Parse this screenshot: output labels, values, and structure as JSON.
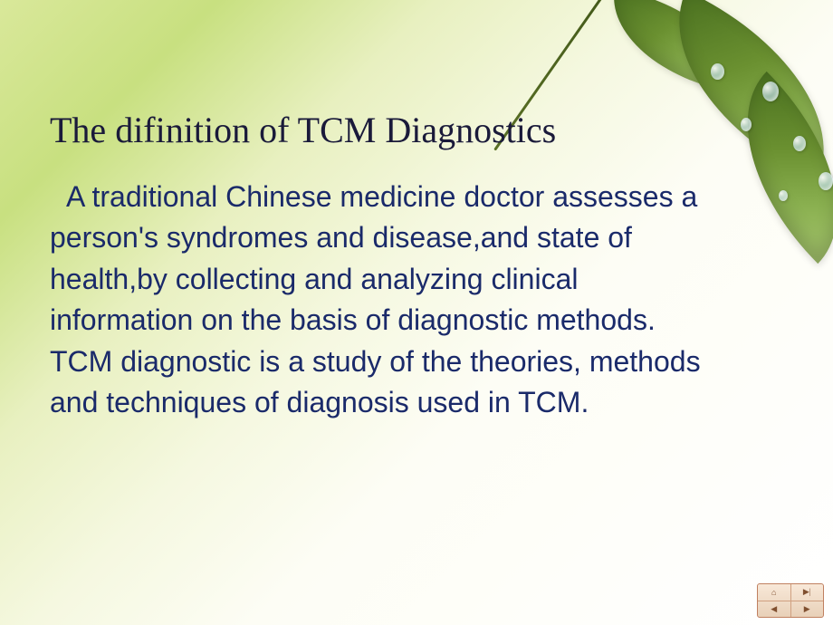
{
  "slide": {
    "title": "The difinition of TCM Diagnostics",
    "body": "A traditional Chinese medicine doctor assesses a person's syndromes  and disease,and state of health,by collecting and analyzing clinical information on the basis of diagnostic methods. TCM diagnostic is a study of the theories, methods and techniques of diagnosis used in TCM."
  },
  "style": {
    "title_font": "Comic Sans MS",
    "title_fontsize": 40,
    "title_color": "#1a1a3a",
    "body_font": "Arial",
    "body_fontsize": 32,
    "body_color": "#1a2a6a",
    "bg_gradient_start": "#d9e89a",
    "bg_gradient_end": "#ffffff",
    "leaf_colors": [
      "#4a7020",
      "#6a9030",
      "#8ab050",
      "#a8c870"
    ],
    "slide_width": 920,
    "slide_height": 690
  },
  "nav": {
    "home": "⌂",
    "prev": "◀",
    "next": "▶",
    "last": "▶|"
  }
}
